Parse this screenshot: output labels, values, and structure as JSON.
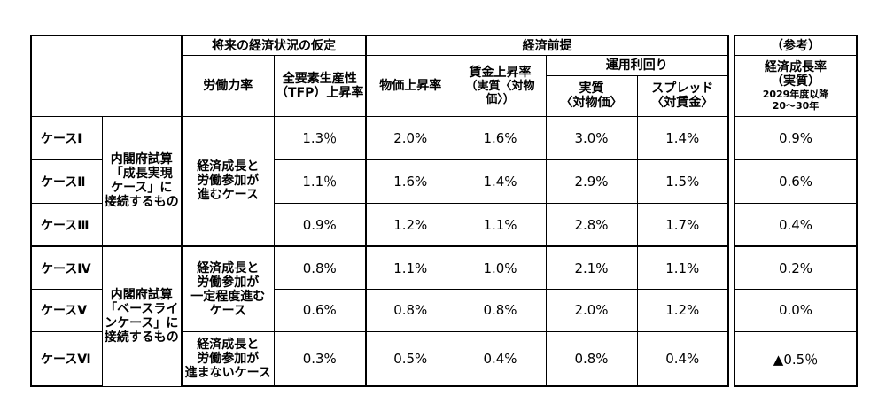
{
  "header": {
    "group_assumption": "将来の経済状況の仮定",
    "group_premise": "経済前提",
    "group_reference": "（参考）",
    "labor": "労働力率",
    "tfp_line1": "全要素生産性",
    "tfp_line2": "（TFP）上昇率",
    "price": "物価上昇率",
    "wage_line1": "賃金上昇率",
    "wage_line2": "（実質〈対物価〉）",
    "yield": "運用利回り",
    "real_line1": "実質",
    "real_line2": "〈対物価〉",
    "spread_line1": "スプレッド",
    "spread_line2": "〈対賃金〉",
    "growth_line1": "経済成長率",
    "growth_line2": "（実質）",
    "growth_line3": "2029年度以降",
    "growth_line4": "20～30年"
  },
  "groups": [
    {
      "lines": [
        "内閣府試算",
        "「成長実現",
        "ケース」に",
        "接続するもの"
      ]
    },
    {
      "lines": [
        "内閣府試算",
        "「ベースライ",
        "ンケース」に",
        "接続するもの"
      ]
    }
  ],
  "labor": [
    {
      "lines": [
        "経済成長と",
        "労働参加が",
        "進むケース"
      ]
    },
    {
      "lines": [
        "経済成長と",
        "労働参加が",
        "一定程度進む",
        "ケース"
      ]
    },
    {
      "lines": [
        "経済成長と",
        "労働参加が",
        "進まないケース"
      ]
    }
  ],
  "rows": [
    {
      "case": "ケースⅠ",
      "tfp": "1.3％",
      "price": "2.0%",
      "wage": "1.6%",
      "real": "3.0%",
      "spread": "1.4%",
      "growth": "0.9%"
    },
    {
      "case": "ケースⅡ",
      "tfp": "1.1％",
      "price": "1.6%",
      "wage": "1.4%",
      "real": "2.9%",
      "spread": "1.5%",
      "growth": "0.6%"
    },
    {
      "case": "ケースⅢ",
      "tfp": "0.9%",
      "price": "1.2%",
      "wage": "1.1%",
      "real": "2.8%",
      "spread": "1.7%",
      "growth": "0.4%"
    },
    {
      "case": "ケースⅣ",
      "tfp": "0.8%",
      "price": "1.1%",
      "wage": "1.0%",
      "real": "2.1%",
      "spread": "1.1%",
      "growth": "0.2%"
    },
    {
      "case": "ケースⅤ",
      "tfp": "0.6%",
      "price": "0.8%",
      "wage": "0.8%",
      "real": "2.0%",
      "spread": "1.2%",
      "growth": "0.0%"
    },
    {
      "case": "ケースⅥ",
      "tfp": "0.3%",
      "price": "0.5%",
      "wage": "0.4%",
      "real": "0.8%",
      "spread": "0.4%",
      "growth": "▲0.5％"
    }
  ]
}
